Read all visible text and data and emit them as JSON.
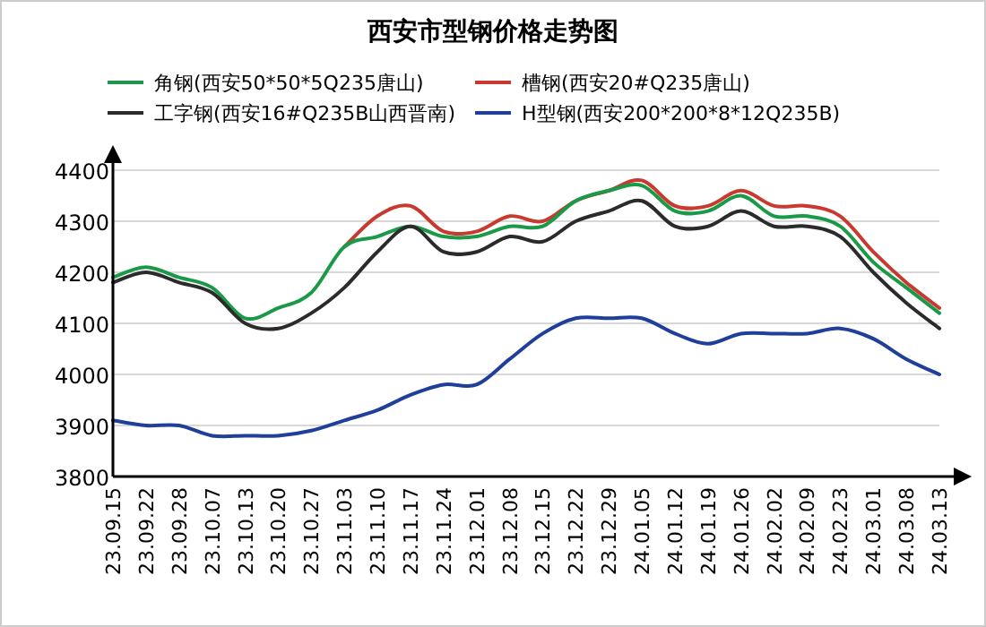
{
  "chart_data": {
    "type": "line",
    "title": "西安市型钢价格走势图",
    "categories": [
      "23.09.15",
      "23.09.22",
      "23.09.28",
      "23.10.07",
      "23.10.13",
      "23.10.20",
      "23.10.27",
      "23.11.03",
      "23.11.10",
      "23.11.17",
      "23.11.24",
      "23.12.01",
      "23.12.08",
      "23.12.15",
      "23.12.22",
      "23.12.29",
      "24.01.05",
      "24.01.12",
      "24.01.19",
      "24.01.26",
      "24.02.02",
      "24.02.09",
      "24.02.23",
      "24.03.01",
      "24.03.08",
      "24.03.13"
    ],
    "series": [
      {
        "name": "角钢(西安50*50*5Q235唐山)",
        "color": "#1a9a48",
        "values": [
          4190,
          4210,
          4190,
          4170,
          4110,
          4130,
          4160,
          4250,
          4270,
          4290,
          4270,
          4270,
          4290,
          4290,
          4340,
          4360,
          4370,
          4320,
          4320,
          4350,
          4310,
          4310,
          4290,
          4220,
          4170,
          4120
        ]
      },
      {
        "name": "槽钢(西安20#Q235唐山)",
        "color": "#c8392f",
        "values": [
          null,
          null,
          null,
          null,
          null,
          null,
          null,
          4250,
          4310,
          4330,
          4280,
          4280,
          4310,
          4300,
          4340,
          4360,
          4380,
          4330,
          4330,
          4360,
          4330,
          4330,
          4310,
          4240,
          4180,
          4130
        ]
      },
      {
        "name": "工字钢(西安16#Q235B山西晋南)",
        "color": "#2b2b2b",
        "values": [
          4180,
          4200,
          4180,
          4160,
          4100,
          4090,
          4120,
          4170,
          4240,
          4290,
          4240,
          4240,
          4270,
          4260,
          4300,
          4320,
          4340,
          4290,
          4290,
          4320,
          4290,
          4290,
          4270,
          4200,
          4140,
          4090
        ]
      },
      {
        "name": "H型钢(西安200*200*8*12Q235B)",
        "color": "#1f3f9a",
        "values": [
          3910,
          3900,
          3900,
          3880,
          3880,
          3880,
          3890,
          3910,
          3930,
          3960,
          3980,
          3980,
          4030,
          4080,
          4110,
          4110,
          4110,
          4080,
          4060,
          4080,
          4080,
          4080,
          4090,
          4070,
          4030,
          4000
        ]
      }
    ],
    "ylim": [
      3800,
      4400
    ],
    "yticks": [
      3800,
      3900,
      4000,
      4100,
      4200,
      4300,
      4400
    ],
    "grid": "y",
    "legend": "top",
    "marker": "none",
    "line_style": "solid"
  }
}
